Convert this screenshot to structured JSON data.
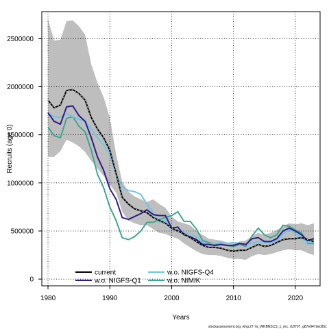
{
  "chart_data": {
    "type": "line",
    "title": "",
    "xlabel": "Years",
    "ylabel": "Recruits (age 0)",
    "xlim": [
      1979,
      2024
    ],
    "ylim": [
      -70000,
      2780000
    ],
    "grid": true,
    "legend_position": "bottom-left",
    "x_ticks": [
      1980,
      1990,
      2000,
      2010,
      2020
    ],
    "x_tick_labels": [
      "1980",
      "1990",
      "2000",
      "2010",
      "2020"
    ],
    "y_ticks": [
      0,
      500000,
      1000000,
      1500000,
      2000000,
      2500000
    ],
    "y_tick_labels": [
      "0",
      "500000",
      "1000000",
      "1500000",
      "2000000",
      "2500000"
    ],
    "x": [
      1980,
      1981,
      1982,
      1983,
      1984,
      1985,
      1986,
      1987,
      1988,
      1989,
      1990,
      1991,
      1992,
      1993,
      1994,
      1995,
      1996,
      1997,
      1998,
      1999,
      2000,
      2001,
      2002,
      2003,
      2004,
      2005,
      2006,
      2007,
      2008,
      2009,
      2010,
      2011,
      2012,
      2013,
      2014,
      2015,
      2016,
      2017,
      2018,
      2019,
      2020,
      2021,
      2022,
      2023
    ],
    "band": {
      "color": "#bebebe",
      "lower": [
        1270000,
        1270000,
        1330000,
        1450000,
        1420000,
        1380000,
        1320000,
        1230000,
        1150000,
        1070000,
        980000,
        900000,
        700000,
        610000,
        580000,
        560000,
        560000,
        520000,
        480000,
        470000,
        440000,
        420000,
        370000,
        330000,
        290000,
        260000,
        250000,
        250000,
        240000,
        220000,
        210000,
        210000,
        200000,
        240000,
        260000,
        250000,
        260000,
        280000,
        300000,
        310000,
        300000,
        300000,
        270000,
        250000
      ],
      "upper": [
        2700000,
        2480000,
        2490000,
        2680000,
        2690000,
        2630000,
        2540000,
        2230000,
        2040000,
        1890000,
        1680000,
        1300000,
        1010000,
        910000,
        860000,
        830000,
        800000,
        830000,
        780000,
        740000,
        650000,
        600000,
        580000,
        560000,
        500000,
        460000,
        420000,
        410000,
        400000,
        380000,
        370000,
        390000,
        400000,
        450000,
        480000,
        460000,
        480000,
        510000,
        550000,
        580000,
        570000,
        580000,
        560000,
        580000
      ]
    },
    "series": [
      {
        "name": "current",
        "color": "#000000",
        "dash": "solid",
        "values": [
          1860000,
          1780000,
          1810000,
          1960000,
          1970000,
          1930000,
          1860000,
          1680000,
          1560000,
          1470000,
          1340000,
          1100000,
          850000,
          780000,
          730000,
          710000,
          690000,
          640000,
          610000,
          580000,
          530000,
          500000,
          470000,
          430000,
          390000,
          350000,
          330000,
          330000,
          320000,
          300000,
          290000,
          300000,
          300000,
          330000,
          360000,
          340000,
          350000,
          380000,
          410000,
          420000,
          420000,
          430000,
          410000,
          390000
        ]
      },
      {
        "name": "w.o. NIGFS-Q1",
        "color": "#2e1a87",
        "dash": "solid",
        "values": [
          1730000,
          1640000,
          1610000,
          1790000,
          1800000,
          1700000,
          1640000,
          1470000,
          1270000,
          1130000,
          940000,
          830000,
          640000,
          620000,
          650000,
          680000,
          720000,
          670000,
          660000,
          660000,
          530000,
          540000,
          460000,
          440000,
          410000,
          360000,
          360000,
          350000,
          360000,
          350000,
          350000,
          370000,
          360000,
          420000,
          430000,
          390000,
          390000,
          420000,
          500000,
          530000,
          500000,
          460000,
          400000,
          420000
        ]
      },
      {
        "name": "w.o. NIGFS-Q4",
        "color": "#70c4e8",
        "dash": "solid",
        "values": [
          1720000,
          1690000,
          1680000,
          1720000,
          1690000,
          1660000,
          1640000,
          1560000,
          1470000,
          1400000,
          1290000,
          1090000,
          960000,
          920000,
          910000,
          880000,
          780000,
          690000,
          590000,
          610000,
          520000,
          510000,
          480000,
          470000,
          440000,
          380000,
          360000,
          370000,
          380000,
          370000,
          380000,
          370000,
          360000,
          370000,
          390000,
          380000,
          380000,
          400000,
          470000,
          520000,
          470000,
          420000,
          380000,
          380000
        ]
      },
      {
        "name": "w.o. NIMIK",
        "color": "#3aa88e",
        "dash": "solid",
        "values": [
          1580000,
          1490000,
          1470000,
          1670000,
          1690000,
          1590000,
          1530000,
          1340000,
          1090000,
          950000,
          750000,
          610000,
          430000,
          410000,
          440000,
          500000,
          590000,
          590000,
          620000,
          640000,
          660000,
          700000,
          600000,
          600000,
          520000,
          400000,
          380000,
          360000,
          360000,
          350000,
          340000,
          360000,
          340000,
          450000,
          530000,
          460000,
          430000,
          460000,
          560000,
          550000,
          510000,
          480000,
          370000,
          370000
        ]
      }
    ],
    "legend_columns": [
      {
        "items": [
          "current",
          "w.o. NIGFS-Q1"
        ]
      },
      {
        "items": [
          "w.o. NIGFS-Q4",
          "w.o. NIMIK"
        ]
      }
    ]
  },
  "footer_text": "stockassessment.org, whg.27.7a_WKBNSCS_1_rec, r18707, g87e947dec851"
}
